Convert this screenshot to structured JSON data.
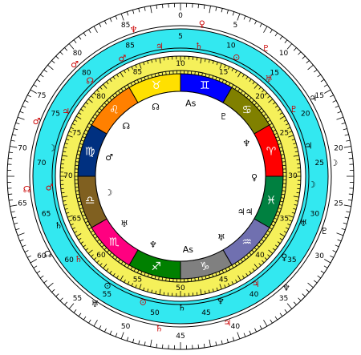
{
  "outer_ring": {
    "color": "#ffffff",
    "tick_labels": [
      "0",
      "5",
      "10",
      "15",
      "20",
      "25",
      "30",
      "35",
      "40",
      "45",
      "50",
      "55",
      "60",
      "65",
      "70",
      "75",
      "80",
      "85"
    ],
    "glyphs": [
      {
        "symbol": "♀",
        "color": "#cc0000"
      },
      {
        "symbol": "♇",
        "color": "#cc0000"
      },
      {
        "symbol": "♃",
        "color": "#000000"
      },
      {
        "symbol": "☽",
        "color": "#000000"
      },
      {
        "symbol": "♇",
        "color": "#000000"
      },
      {
        "symbol": "♆",
        "color": "#000000"
      },
      {
        "symbol": "♃",
        "color": "#cc0000"
      },
      {
        "symbol": "♄",
        "color": "#cc0000"
      },
      {
        "symbol": "♅",
        "color": "#000000"
      },
      {
        "symbol": "☊",
        "color": "#000000"
      },
      {
        "symbol": "☊",
        "color": "#cc0000"
      },
      {
        "symbol": "♂",
        "color": "#cc0000"
      },
      {
        "symbol": "♂",
        "color": "#cc0000"
      },
      {
        "symbol": "♆",
        "color": "#cc0000"
      }
    ]
  },
  "cyan_ring": {
    "color": "#33e8f0",
    "tick_labels": [
      "5",
      "10",
      "15",
      "20",
      "25",
      "30",
      "35",
      "40",
      "45",
      "50",
      "55",
      "60",
      "65",
      "70",
      "75",
      "80",
      "85"
    ],
    "glyphs": [
      {
        "symbol": "♄",
        "color": "#cc0000"
      },
      {
        "symbol": "⊙",
        "color": "#cc0000"
      },
      {
        "symbol": "♅",
        "color": "#cc0000"
      },
      {
        "symbol": "♇",
        "color": "#cc0000"
      },
      {
        "symbol": "♃",
        "color": "#000000"
      },
      {
        "symbol": "☽",
        "color": "#000000"
      },
      {
        "symbol": "♅",
        "color": "#000000"
      },
      {
        "symbol": "♀",
        "color": "#000000"
      },
      {
        "symbol": "♃",
        "color": "#cc0000"
      },
      {
        "symbol": "♆",
        "color": "#000000"
      },
      {
        "symbol": "♄",
        "color": "#000000"
      },
      {
        "symbol": "⊙",
        "color": "#cc0000"
      },
      {
        "symbol": "⊙",
        "color": "#000000"
      },
      {
        "symbol": "♄",
        "color": "#cc0000"
      },
      {
        "symbol": "♄",
        "color": "#000000"
      },
      {
        "symbol": "♂",
        "color": "#cc0000"
      },
      {
        "symbol": "☽",
        "color": "#000000"
      },
      {
        "symbol": "♃",
        "color": "#cc0000"
      },
      {
        "symbol": "☊",
        "color": "#cc0000"
      },
      {
        "symbol": "♂",
        "color": "#cc0000"
      },
      {
        "symbol": "♃",
        "color": "#cc0000"
      }
    ]
  },
  "yellow_ring": {
    "color": "#f5f05a",
    "tick_labels": [
      "10",
      "15",
      "20",
      "25",
      "30",
      "35",
      "40",
      "45",
      "50",
      "55",
      "60",
      "65",
      "70",
      "75",
      "80",
      "85"
    ]
  },
  "signs": [
    {
      "symbol": "♊",
      "color": "#0000ff"
    },
    {
      "symbol": "♋",
      "color": "#808000"
    },
    {
      "symbol": "♈",
      "color": "#ff0000"
    },
    {
      "symbol": "♓",
      "color": "#008040"
    },
    {
      "symbol": "♒",
      "color": "#7070b0"
    },
    {
      "symbol": "♑",
      "color": "#808080"
    },
    {
      "symbol": "♐",
      "color": "#008000"
    },
    {
      "symbol": "♏",
      "color": "#ff0080"
    },
    {
      "symbol": "♎",
      "color": "#806020"
    },
    {
      "symbol": "♍",
      "color": "#003080"
    },
    {
      "symbol": "♌",
      "color": "#ff8000"
    },
    {
      "symbol": "♉",
      "color": "#ffe000"
    }
  ],
  "inner_glyphs": [
    {
      "symbol": "As"
    },
    {
      "symbol": "♇"
    },
    {
      "symbol": "♆"
    },
    {
      "symbol": "♀"
    },
    {
      "symbol": "♃♃"
    },
    {
      "symbol": "♅"
    },
    {
      "symbol": "As"
    },
    {
      "symbol": "♆"
    },
    {
      "symbol": "♅"
    },
    {
      "symbol": "☽"
    },
    {
      "symbol": "♂"
    },
    {
      "symbol": "☊"
    },
    {
      "symbol": "☊"
    }
  ]
}
